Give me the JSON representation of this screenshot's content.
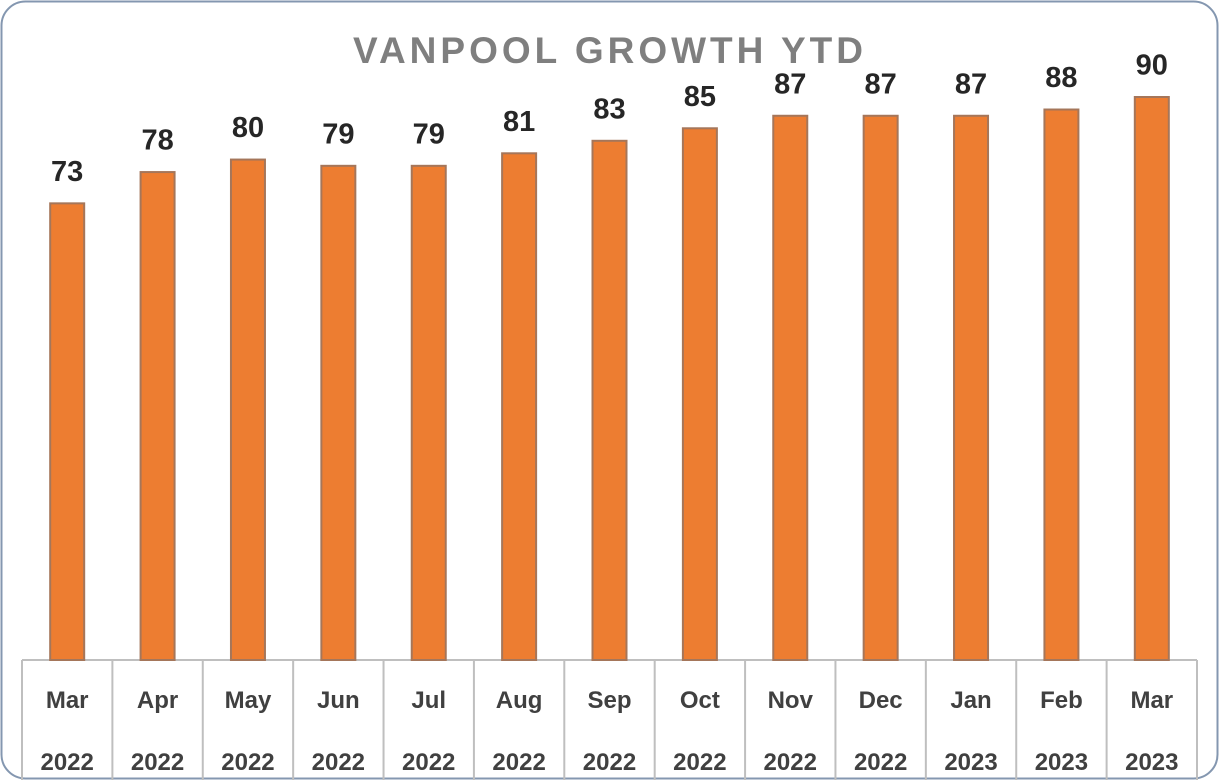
{
  "chart_data": {
    "type": "bar",
    "title": "VANPOOL GROWTH YTD",
    "categories": [
      "Mar 2022",
      "Apr 2022",
      "May 2022",
      "Jun 2022",
      "Jul 2022",
      "Aug 2022",
      "Sep 2022",
      "Oct 2022",
      "Nov 2022",
      "Dec 2022",
      "Jan 2023",
      "Feb 2023",
      "Mar 2023"
    ],
    "values": [
      73,
      78,
      80,
      79,
      79,
      81,
      83,
      85,
      87,
      87,
      87,
      88,
      90
    ],
    "color": "#ed7d31"
  }
}
